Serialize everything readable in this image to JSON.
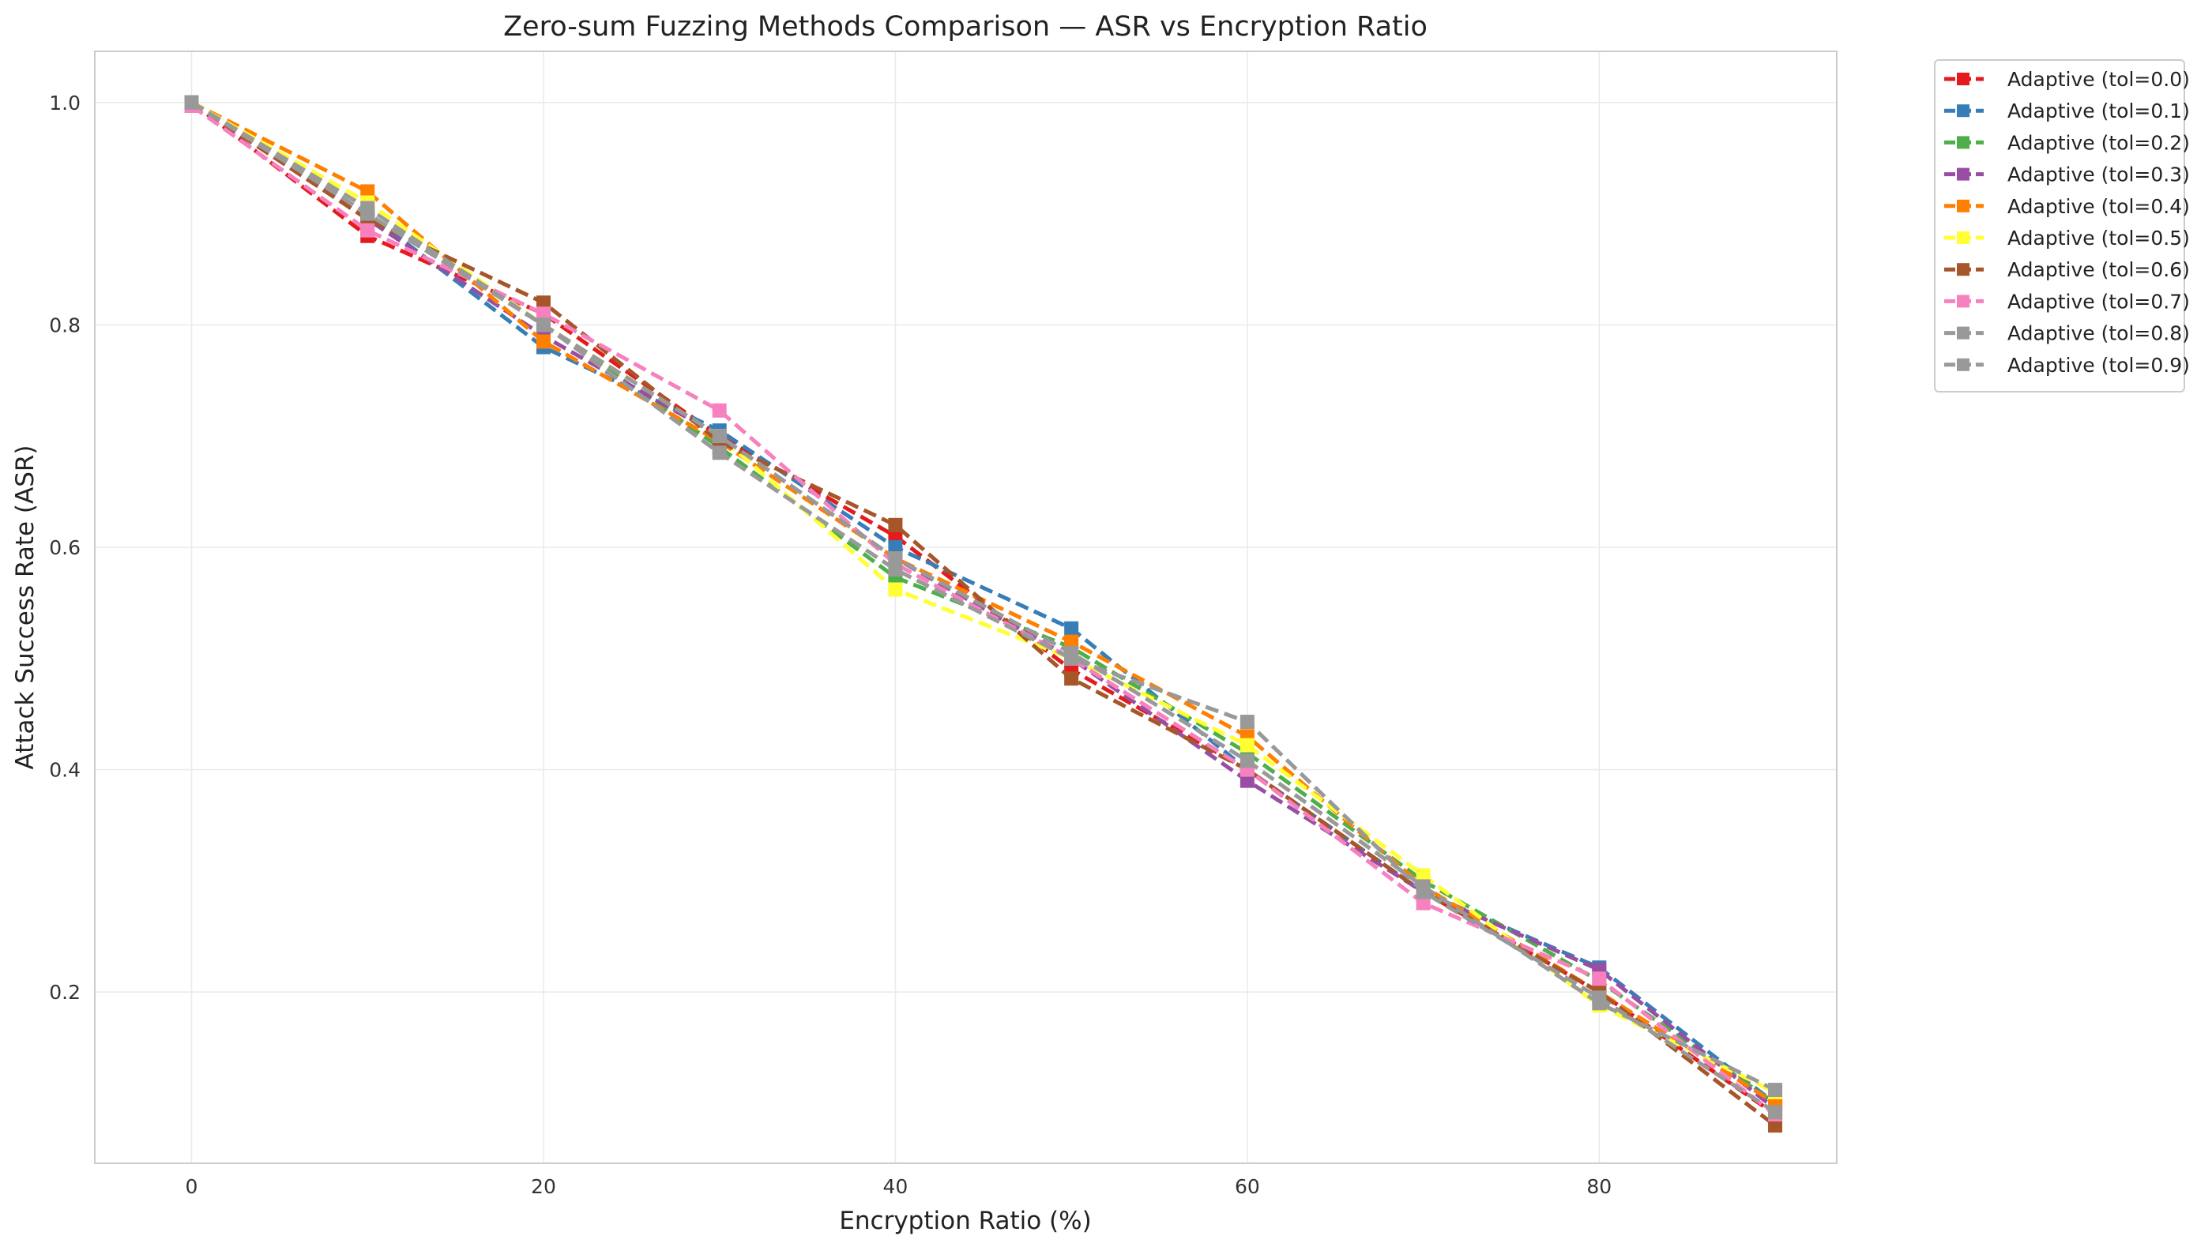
{
  "chart_data": {
    "type": "line",
    "title": "Zero-sum Fuzzing Methods Comparison — ASR vs Encryption Ratio",
    "xlabel": "Encryption Ratio (%)",
    "ylabel": "Attack Success Rate (ASR)",
    "xlim": [
      -5.5,
      93.5
    ],
    "ylim": [
      0.046,
      1.046
    ],
    "xticks": [
      0,
      20,
      40,
      60,
      80
    ],
    "yticks": [
      0.2,
      0.4,
      0.6,
      0.8,
      1.0
    ],
    "x": [
      0,
      10,
      20,
      30,
      40,
      50,
      60,
      70,
      80,
      90
    ],
    "grid": true,
    "legend_position": "outside-top-right",
    "line_style": "dashed",
    "marker": "square",
    "series": [
      {
        "name": "Adaptive (tol=0.0)",
        "color": "#e41a1c",
        "values": [
          1.0,
          0.88,
          0.81,
          0.7,
          0.61,
          0.49,
          0.4,
          0.29,
          0.2,
          0.09
        ]
      },
      {
        "name": "Adaptive (tol=0.1)",
        "color": "#377eb8",
        "values": [
          1.0,
          0.9,
          0.78,
          0.705,
          0.6,
          0.527,
          0.4,
          0.29,
          0.222,
          0.1
        ]
      },
      {
        "name": "Adaptive (tol=0.2)",
        "color": "#4daf4a",
        "values": [
          1.0,
          0.9,
          0.8,
          0.69,
          0.573,
          0.51,
          0.415,
          0.3,
          0.21,
          0.1
        ]
      },
      {
        "name": "Adaptive (tol=0.3)",
        "color": "#984ea3",
        "values": [
          1.0,
          0.895,
          0.79,
          0.7,
          0.59,
          0.5,
          0.39,
          0.29,
          0.22,
          0.095
        ]
      },
      {
        "name": "Adaptive (tol=0.4)",
        "color": "#ff7f00",
        "values": [
          1.0,
          0.92,
          0.785,
          0.695,
          0.59,
          0.515,
          0.43,
          0.295,
          0.2,
          0.1
        ]
      },
      {
        "name": "Adaptive (tol=0.5)",
        "color": "#ffff33",
        "values": [
          1.0,
          0.91,
          0.8,
          0.7,
          0.562,
          0.5,
          0.422,
          0.305,
          0.188,
          0.11
        ]
      },
      {
        "name": "Adaptive (tol=0.6)",
        "color": "#a65628",
        "values": [
          1.0,
          0.895,
          0.82,
          0.695,
          0.62,
          0.482,
          0.4,
          0.29,
          0.2,
          0.08
        ]
      },
      {
        "name": "Adaptive (tol=0.7)",
        "color": "#f781bf",
        "values": [
          0.997,
          0.885,
          0.81,
          0.723,
          0.585,
          0.5,
          0.4,
          0.28,
          0.212,
          0.09
        ]
      },
      {
        "name": "Adaptive (tol=0.8)",
        "color": "#999999",
        "values": [
          1.0,
          0.9,
          0.8,
          0.685,
          0.58,
          0.5,
          0.443,
          0.29,
          0.195,
          0.092
        ]
      },
      {
        "name": "Adaptive (tol=0.9)",
        "color": "#999999",
        "values": [
          1.0,
          0.905,
          0.8,
          0.7,
          0.59,
          0.505,
          0.408,
          0.295,
          0.19,
          0.112
        ]
      }
    ]
  }
}
